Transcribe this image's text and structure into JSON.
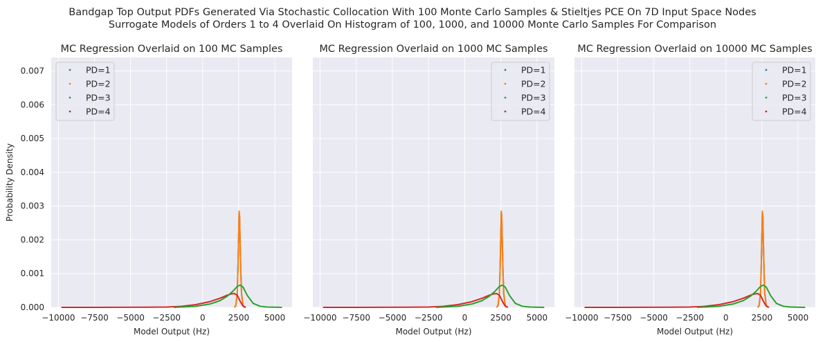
{
  "suptitle": {
    "line1": "Bandgap Top Output PDFs Generated Via Stochastic Collocation With 100 Monte Carlo Samples & Stieltjes PCE On 7D Input Space Nodes",
    "line2": "Surrogate Models of Orders 1 to 4 Overlaid On Histogram of 100, 1000, and 10000 Monte Carlo Samples For Comparison"
  },
  "colors": {
    "background": "#eaeaf2",
    "grid": "#ffffff",
    "PD=1": "#1f77b4",
    "PD=2": "#ff7f0e",
    "PD=3": "#2ca02c",
    "PD=4": "#d62728"
  },
  "chart_data": [
    {
      "type": "line",
      "title": "MC Regression Overlaid on 100 MC Samples",
      "xlabel": "Model Output (Hz)",
      "ylabel": "Probability Density",
      "xlim": [
        -10500,
        6200
      ],
      "ylim": [
        0,
        0.0074
      ],
      "xticks": [
        -10000,
        -7500,
        -5000,
        -2500,
        0,
        2500,
        5000
      ],
      "xtick_labels": [
        "−10000",
        "−7500",
        "−5000",
        "−2500",
        "0",
        "2500",
        "5000"
      ],
      "yticks": [
        0,
        0.001,
        0.002,
        0.003,
        0.004,
        0.005,
        0.006,
        0.007
      ],
      "ytick_labels": [
        "0.000",
        "0.001",
        "0.002",
        "0.003",
        "0.004",
        "0.005",
        "0.006",
        "0.007"
      ],
      "grid": true,
      "legend": "top-left",
      "series": [
        {
          "name": "PD=1",
          "x": [
            2200,
            2300,
            2400,
            2450,
            2500,
            2530,
            2560,
            2600,
            2650,
            2700,
            2800,
            2900
          ],
          "y": [
            0,
            5e-05,
            0.0004,
            0.0012,
            0.0022,
            0.0028,
            0.0027,
            0.0019,
            0.001,
            0.0004,
            5e-05,
            0
          ]
        },
        {
          "name": "PD=2",
          "x": [
            2200,
            2300,
            2400,
            2450,
            2500,
            2530,
            2560,
            2600,
            2650,
            2700,
            2800,
            2900
          ],
          "y": [
            0,
            5e-05,
            0.0004,
            0.0012,
            0.0022,
            0.00285,
            0.0027,
            0.0019,
            0.001,
            0.0004,
            5e-05,
            0
          ]
        },
        {
          "name": "PD=3",
          "x": [
            -2000,
            -500,
            500,
            1200,
            1700,
            2100,
            2400,
            2600,
            2800,
            3100,
            3500,
            4000,
            4500,
            5500
          ],
          "y": [
            0,
            3e-05,
            0.0001,
            0.0002,
            0.00033,
            0.00048,
            0.00062,
            0.00066,
            0.0006,
            0.00035,
            0.00012,
            3e-05,
            1e-05,
            0
          ]
        },
        {
          "name": "PD=4",
          "x": [
            -9800,
            -6000,
            -4000,
            -2500,
            -1500,
            -500,
            500,
            1200,
            1700,
            2000,
            2200,
            2400,
            2600,
            2800,
            3000
          ],
          "y": [
            0,
            2e-06,
            5e-06,
            1e-05,
            3e-05,
            8e-05,
            0.00017,
            0.00027,
            0.00036,
            0.0004,
            0.00041,
            0.00036,
            0.00018,
            4e-05,
            0
          ]
        }
      ]
    },
    {
      "type": "line",
      "title": "MC Regression Overlaid on 1000 MC Samples",
      "xlabel": "Model Output (Hz)",
      "ylabel": "",
      "xlim": [
        -10500,
        6200
      ],
      "ylim": [
        0,
        0.0074
      ],
      "xticks": [
        -10000,
        -7500,
        -5000,
        -2500,
        0,
        2500,
        5000
      ],
      "xtick_labels": [
        "−10000",
        "−7500",
        "−5000",
        "−2500",
        "0",
        "2500",
        "5000"
      ],
      "yticks": [
        0,
        0.001,
        0.002,
        0.003,
        0.004,
        0.005,
        0.006,
        0.007
      ],
      "grid": true,
      "legend": "top-right",
      "series": [
        {
          "name": "PD=1",
          "x": [
            2200,
            2300,
            2400,
            2450,
            2500,
            2530,
            2560,
            2600,
            2650,
            2700,
            2800,
            2900
          ],
          "y": [
            0,
            5e-05,
            0.0004,
            0.0012,
            0.0022,
            0.0028,
            0.0027,
            0.0019,
            0.001,
            0.0004,
            5e-05,
            0
          ]
        },
        {
          "name": "PD=2",
          "x": [
            2200,
            2300,
            2400,
            2450,
            2500,
            2530,
            2560,
            2600,
            2650,
            2700,
            2800,
            2900
          ],
          "y": [
            0,
            5e-05,
            0.0004,
            0.0012,
            0.0022,
            0.00285,
            0.0027,
            0.0019,
            0.001,
            0.0004,
            5e-05,
            0
          ]
        },
        {
          "name": "PD=3",
          "x": [
            -2000,
            -500,
            500,
            1200,
            1700,
            2100,
            2400,
            2600,
            2800,
            3100,
            3500,
            4000,
            4500,
            5500
          ],
          "y": [
            0,
            3e-05,
            0.0001,
            0.0002,
            0.00033,
            0.00048,
            0.00062,
            0.00066,
            0.0006,
            0.00035,
            0.00012,
            3e-05,
            1e-05,
            0
          ]
        },
        {
          "name": "PD=4",
          "x": [
            -9800,
            -6000,
            -4000,
            -2500,
            -1500,
            -500,
            500,
            1200,
            1700,
            2000,
            2200,
            2400,
            2600,
            2800,
            3000
          ],
          "y": [
            0,
            2e-06,
            5e-06,
            1e-05,
            3e-05,
            8e-05,
            0.00017,
            0.00027,
            0.00036,
            0.0004,
            0.00041,
            0.00036,
            0.00018,
            4e-05,
            0
          ]
        }
      ]
    },
    {
      "type": "line",
      "title": "MC Regression Overlaid on 10000 MC Samples",
      "xlabel": "Model Output (Hz)",
      "ylabel": "",
      "xlim": [
        -10500,
        6200
      ],
      "ylim": [
        0,
        0.0074
      ],
      "xticks": [
        -10000,
        -7500,
        -5000,
        -2500,
        0,
        2500,
        5000
      ],
      "xtick_labels": [
        "−10000",
        "−7500",
        "−5000",
        "−2500",
        "0",
        "2500",
        "5000"
      ],
      "yticks": [
        0,
        0.001,
        0.002,
        0.003,
        0.004,
        0.005,
        0.006,
        0.007
      ],
      "grid": true,
      "legend": "top-right",
      "series": [
        {
          "name": "PD=1",
          "x": [
            2200,
            2300,
            2400,
            2450,
            2500,
            2530,
            2560,
            2600,
            2650,
            2700,
            2800,
            2900
          ],
          "y": [
            0,
            5e-05,
            0.0004,
            0.0012,
            0.0022,
            0.0028,
            0.0027,
            0.0019,
            0.001,
            0.0004,
            5e-05,
            0
          ]
        },
        {
          "name": "PD=2",
          "x": [
            2200,
            2300,
            2400,
            2450,
            2500,
            2530,
            2560,
            2600,
            2650,
            2700,
            2800,
            2900
          ],
          "y": [
            0,
            5e-05,
            0.0004,
            0.0012,
            0.0022,
            0.00285,
            0.0027,
            0.0019,
            0.001,
            0.0004,
            5e-05,
            0
          ]
        },
        {
          "name": "PD=3",
          "x": [
            -2000,
            -500,
            500,
            1200,
            1700,
            2100,
            2400,
            2600,
            2800,
            3100,
            3500,
            4000,
            4500,
            5500
          ],
          "y": [
            0,
            3e-05,
            0.0001,
            0.0002,
            0.00033,
            0.00048,
            0.00062,
            0.00066,
            0.0006,
            0.00035,
            0.00012,
            3e-05,
            1e-05,
            0
          ]
        },
        {
          "name": "PD=4",
          "x": [
            -9800,
            -6000,
            -4000,
            -2500,
            -1500,
            -500,
            500,
            1200,
            1700,
            2000,
            2200,
            2400,
            2600,
            2800,
            3000
          ],
          "y": [
            0,
            2e-06,
            5e-06,
            1e-05,
            3e-05,
            8e-05,
            0.00017,
            0.00027,
            0.00036,
            0.0004,
            0.00041,
            0.00036,
            0.00018,
            4e-05,
            0
          ]
        }
      ]
    }
  ]
}
